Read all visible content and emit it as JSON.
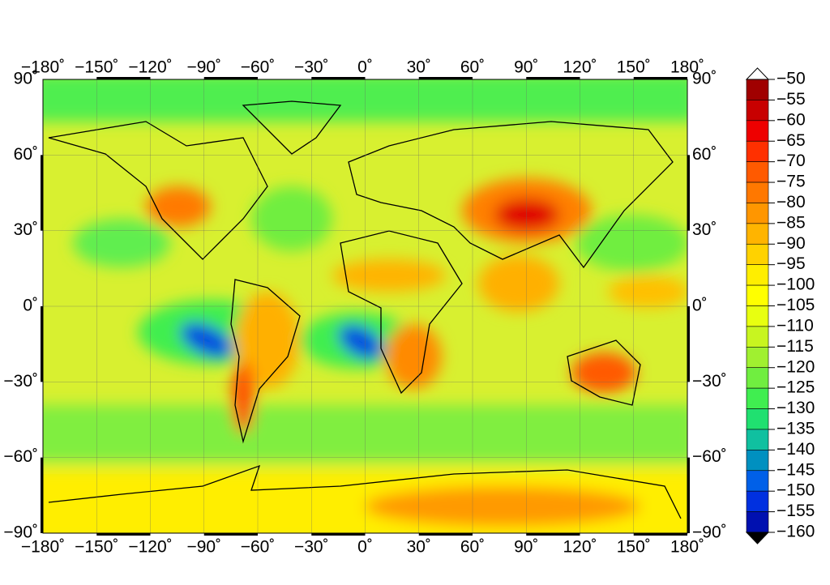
{
  "map": {
    "lon_ticks": [
      {
        "value": -180,
        "label": "−180˚"
      },
      {
        "value": -150,
        "label": "−150˚"
      },
      {
        "value": -120,
        "label": "−120˚"
      },
      {
        "value": -90,
        "label": "−90˚"
      },
      {
        "value": -60,
        "label": "−60˚"
      },
      {
        "value": -30,
        "label": "−30˚"
      },
      {
        "value": 0,
        "label": "0˚"
      },
      {
        "value": 30,
        "label": "30˚"
      },
      {
        "value": 60,
        "label": "60˚"
      },
      {
        "value": 90,
        "label": "90˚"
      },
      {
        "value": 120,
        "label": "120˚"
      },
      {
        "value": 150,
        "label": "150˚"
      },
      {
        "value": 180,
        "label": "180˚"
      }
    ],
    "lat_ticks": [
      {
        "value": 90,
        "label": "90˚"
      },
      {
        "value": 60,
        "label": "60˚"
      },
      {
        "value": 30,
        "label": "30˚"
      },
      {
        "value": 0,
        "label": "0˚"
      },
      {
        "value": -30,
        "label": "−30˚"
      },
      {
        "value": -60,
        "label": "−60˚"
      },
      {
        "value": -90,
        "label": "−90˚"
      }
    ],
    "colorbar": {
      "ticks": [
        {
          "value": -50,
          "label": "−50"
        },
        {
          "value": -55,
          "label": "−55"
        },
        {
          "value": -60,
          "label": "−60"
        },
        {
          "value": -65,
          "label": "−65"
        },
        {
          "value": -70,
          "label": "−70"
        },
        {
          "value": -75,
          "label": "−75"
        },
        {
          "value": -80,
          "label": "−80"
        },
        {
          "value": -85,
          "label": "−85"
        },
        {
          "value": -90,
          "label": "−90"
        },
        {
          "value": -95,
          "label": "−95"
        },
        {
          "value": -100,
          "label": "−100"
        },
        {
          "value": -105,
          "label": "−105"
        },
        {
          "value": -110,
          "label": "−110"
        },
        {
          "value": -115,
          "label": "−115"
        },
        {
          "value": -120,
          "label": "−120"
        },
        {
          "value": -125,
          "label": "−125"
        },
        {
          "value": -130,
          "label": "−130"
        },
        {
          "value": -135,
          "label": "−135"
        },
        {
          "value": -140,
          "label": "−140"
        },
        {
          "value": -145,
          "label": "−145"
        },
        {
          "value": -150,
          "label": "−150"
        },
        {
          "value": -155,
          "label": "−155"
        },
        {
          "value": -160,
          "label": "−160"
        }
      ],
      "colors": [
        "#a00000",
        "#c80000",
        "#ee0000",
        "#ff3000",
        "#ff5a00",
        "#ff7800",
        "#ff9600",
        "#ffb400",
        "#ffd200",
        "#ffee00",
        "#ffff00",
        "#e8ff10",
        "#c8f520",
        "#a0f030",
        "#70ee40",
        "#40ee50",
        "#20e070",
        "#10c0a0",
        "#0090c0",
        "#0060e8",
        "#0030e0",
        "#0010b0"
      ],
      "over_color": "#ffffff",
      "under_color": "#000000"
    }
  }
}
